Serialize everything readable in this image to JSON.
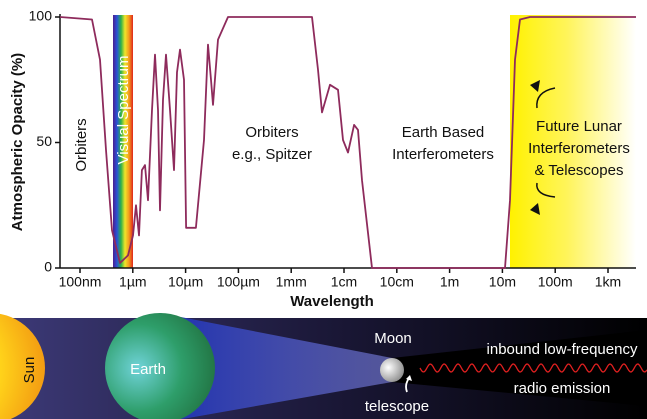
{
  "chart_data": {
    "type": "line",
    "ylabel": "Atmospheric Opacity (%)",
    "xlabel": "Wavelength",
    "x": [
      4.18e-08,
      1.69e-07,
      2.39e-07,
      3.11e-07,
      4.04e-07,
      5.73e-07,
      8.11e-07,
      1.01e-06,
      1.15e-06,
      1.31e-06,
      1.49e-06,
      1.7e-06,
      1.94e-06,
      2.31e-06,
      2.63e-06,
      3e-06,
      3.27e-06,
      3.73e-06,
      4.25e-06,
      5.07e-06,
      6.03e-06,
      6.87e-06,
      7.83e-06,
      9.33e-06,
      1.02e-05,
      1.57e-05,
      2.23e-05,
      2.65e-05,
      3.03e-05,
      3.3e-05,
      4.11e-05,
      6.36e-05,
      0.00248,
      0.00322,
      0.00383,
      0.00543,
      0.00769,
      0.00957,
      0.0119,
      0.0155,
      0.0184,
      0.0219,
      0.0339,
      11.2,
      13.9,
      17.3,
      21.5,
      33.3,
      3390
    ],
    "values": [
      100,
      99,
      83,
      47,
      15,
      2,
      5,
      13,
      25,
      13,
      39,
      41,
      27,
      63,
      85,
      63,
      23,
      67,
      85,
      63,
      39,
      78,
      87,
      75,
      16,
      16,
      51,
      89,
      75,
      65,
      91,
      100,
      100,
      79,
      62,
      73,
      71,
      51,
      46,
      57,
      55,
      35,
      0,
      0,
      27,
      83,
      99,
      100,
      100
    ],
    "color": "#8e2b5c",
    "xscale": "log",
    "xlim": [
      4.18e-08,
      3390
    ],
    "xticks": [
      {
        "value": 1e-07,
        "label": "100nm"
      },
      {
        "value": 1e-06,
        "label": "1µm"
      },
      {
        "value": 1e-05,
        "label": "10µm"
      },
      {
        "value": 0.0001,
        "label": "100µm"
      },
      {
        "value": 0.001,
        "label": "1mm"
      },
      {
        "value": 0.01,
        "label": "1cm"
      },
      {
        "value": 0.1,
        "label": "10cm"
      },
      {
        "value": 1,
        "label": "1m"
      },
      {
        "value": 10,
        "label": "10m"
      },
      {
        "value": 100,
        "label": "100m"
      },
      {
        "value": 1000,
        "label": "1km"
      }
    ],
    "ylim": [
      0,
      100
    ],
    "yticks": [
      0,
      50,
      100
    ],
    "annotations": [
      [
        "Orbiters"
      ],
      [
        "Visual Spectrum"
      ],
      [
        "Orbiters",
        "e.g., Spitzer"
      ],
      [
        "Earth Based",
        "Interferometers"
      ],
      [
        "Future Lunar",
        "Interferometers",
        "& Telescopes"
      ]
    ]
  },
  "diagram": {
    "sun": "Sun",
    "earth": "Earth",
    "moon": "Moon",
    "telescope": "telescope",
    "emission_line_1": "inbound low-frequency",
    "emission_line_2": "radio emission"
  }
}
